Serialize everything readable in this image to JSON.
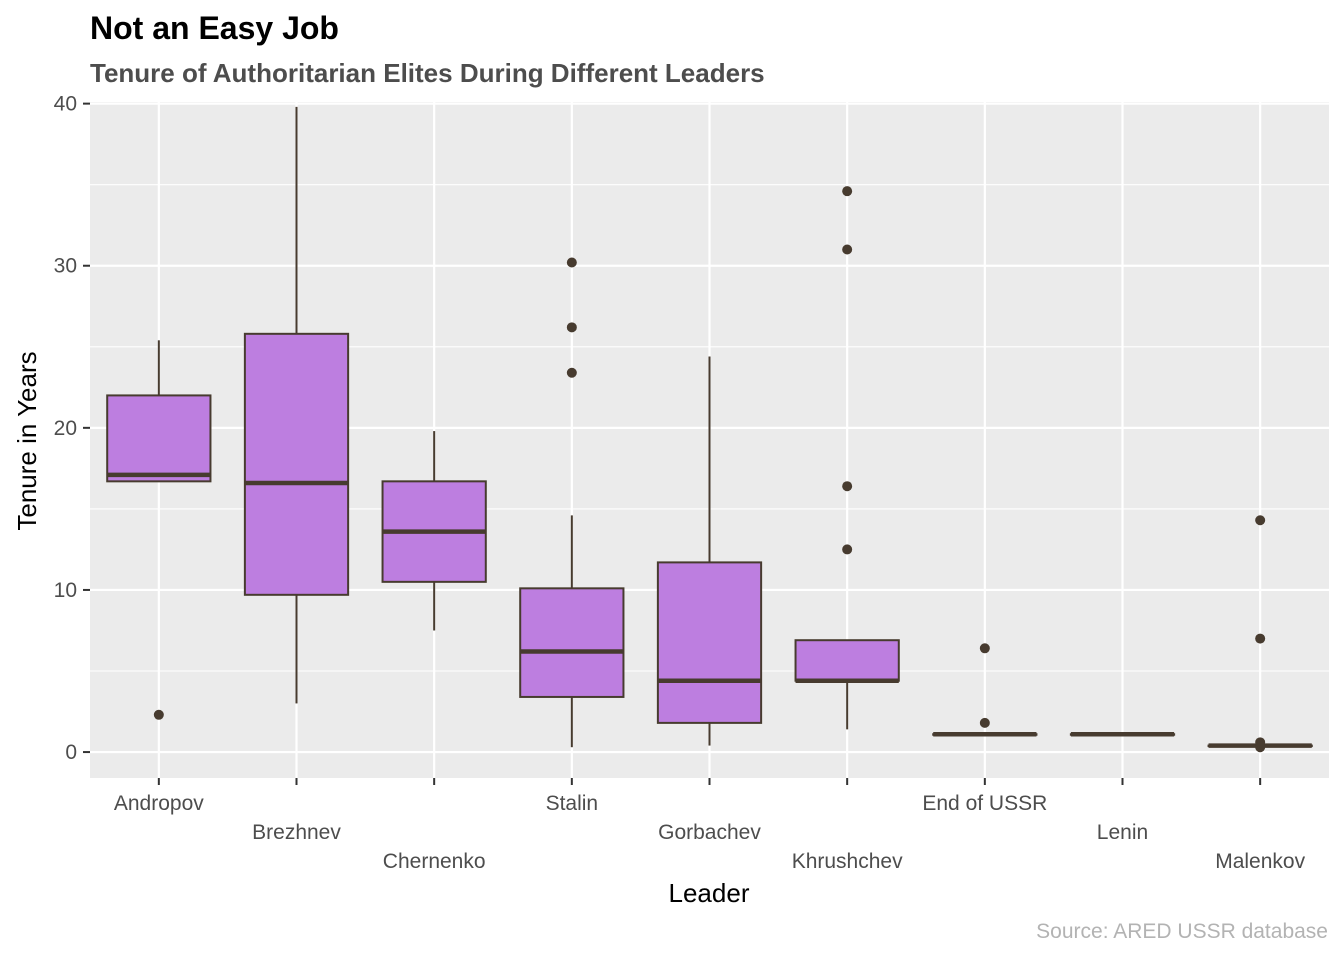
{
  "title": "Not an Easy Job",
  "subtitle": "Tenure of Authoritarian Elites During Different Leaders",
  "caption": "Source: ARED USSR database",
  "colors": {
    "panel": "#ebebeb",
    "grid": "#ffffff",
    "box_fill": "#bd7ee0",
    "box_line": "#473b2f",
    "axis_text": "#4d4d4d",
    "tick": "#333333"
  },
  "chart_data": {
    "type": "boxplot",
    "xlabel": "Leader",
    "ylabel": "Tenure in Years",
    "ylim": [
      -1.6,
      40.1
    ],
    "yticks": [
      0,
      10,
      20,
      30,
      40
    ],
    "grid": true,
    "legend": "none",
    "categories": [
      "Andropov",
      "Brezhnev",
      "Chernenko",
      "Stalin",
      "Gorbachev",
      "Khrushchev",
      "End of USSR",
      "Lenin",
      "Malenkov"
    ],
    "boxes": [
      {
        "leader": "Andropov",
        "whisker_low": 16.7,
        "q1": 16.7,
        "median": 17.1,
        "q3": 22.0,
        "whisker_high": 25.4,
        "outliers": [
          2.3
        ]
      },
      {
        "leader": "Brezhnev",
        "whisker_low": 3.0,
        "q1": 9.7,
        "median": 16.6,
        "q3": 25.8,
        "whisker_high": 39.8,
        "outliers": []
      },
      {
        "leader": "Chernenko",
        "whisker_low": 7.5,
        "q1": 10.5,
        "median": 13.6,
        "q3": 16.7,
        "whisker_high": 19.8,
        "outliers": []
      },
      {
        "leader": "Stalin",
        "whisker_low": 0.3,
        "q1": 3.4,
        "median": 6.2,
        "q3": 10.1,
        "whisker_high": 14.6,
        "outliers": [
          23.4,
          26.2,
          30.2
        ]
      },
      {
        "leader": "Gorbachev",
        "whisker_low": 0.4,
        "q1": 1.8,
        "median": 4.4,
        "q3": 11.7,
        "whisker_high": 24.4,
        "outliers": []
      },
      {
        "leader": "Khrushchev",
        "whisker_low": 1.4,
        "q1": 4.4,
        "median": 4.4,
        "q3": 6.9,
        "whisker_high": 6.9,
        "outliers": [
          12.5,
          16.4,
          31.0,
          34.6
        ]
      },
      {
        "leader": "End of USSR",
        "whisker_low": 1.1,
        "q1": 1.1,
        "median": 1.1,
        "q3": 1.1,
        "whisker_high": 1.1,
        "outliers": [
          1.8,
          6.4
        ]
      },
      {
        "leader": "Lenin",
        "whisker_low": 1.1,
        "q1": 1.1,
        "median": 1.1,
        "q3": 1.1,
        "whisker_high": 1.1,
        "outliers": []
      },
      {
        "leader": "Malenkov",
        "whisker_low": 0.4,
        "q1": 0.4,
        "median": 0.4,
        "q3": 0.4,
        "whisker_high": 0.4,
        "outliers": [
          0.3,
          0.6,
          7.0,
          14.3
        ]
      }
    ]
  }
}
